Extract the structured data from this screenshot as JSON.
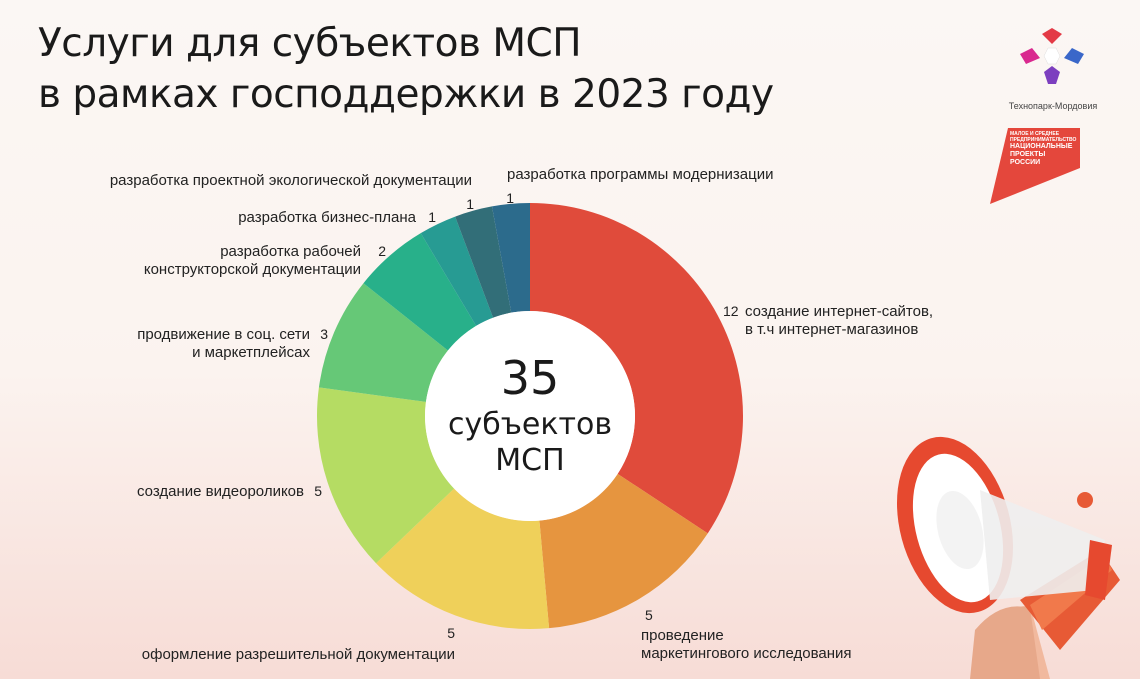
{
  "title": {
    "line1": "Услуги для субъектов МСП",
    "line2": "в рамках господдержки в 2023 году"
  },
  "brand": {
    "logo_caption": "Технопарк-Мордовия",
    "np_line1": "МАЛОЕ И СРЕДНЕЕ",
    "np_line2": "ПРЕДПРИНИМАТЕЛЬСТВО",
    "np_line3": "НАЦИОНАЛЬНЫЕ",
    "np_line4": "ПРОЕКТЫ",
    "np_line5": "РОССИИ",
    "np_color": "#e4473c"
  },
  "chart_data": {
    "type": "pie",
    "center_label": [
      "35",
      "субъектов",
      "МСП"
    ],
    "total": 35,
    "categories": [
      [
        "создание интернет-сайтов,",
        "в т.ч интернет-магазинов"
      ],
      [
        "проведение",
        "маркетингового исследования"
      ],
      [
        "оформление разрешительной документации"
      ],
      [
        "создание видеороликов"
      ],
      [
        "продвижение в соц. сети",
        "и маркетплейсах"
      ],
      [
        "разработка рабочей",
        "конструкторской документации"
      ],
      [
        "разработка бизнес-плана"
      ],
      [
        "разработка проектной экологической документации"
      ],
      [
        "разработка программы модернизации"
      ]
    ],
    "values": [
      12,
      5,
      5,
      5,
      3,
      2,
      1,
      1,
      1
    ],
    "colors": [
      "#e04b3b",
      "#e6953f",
      "#efd05a",
      "#b5dc63",
      "#66c877",
      "#28b08a",
      "#279b93",
      "#326e78",
      "#2c6b8c"
    ]
  }
}
